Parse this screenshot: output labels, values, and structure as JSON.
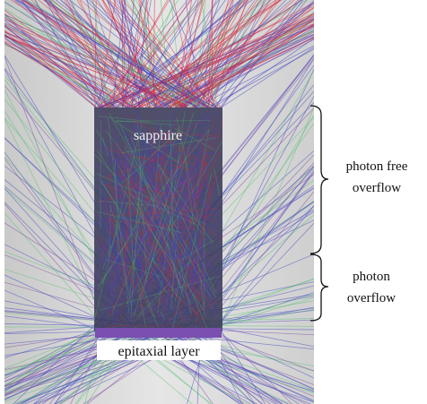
{
  "diagram": {
    "labels": {
      "sapphire": "sapphire",
      "epitaxial_layer": "epitaxial layer"
    },
    "annotations": [
      {
        "lines": [
          "photon free",
          "overflow"
        ]
      },
      {
        "lines": [
          "photon",
          "overflow"
        ]
      }
    ]
  }
}
